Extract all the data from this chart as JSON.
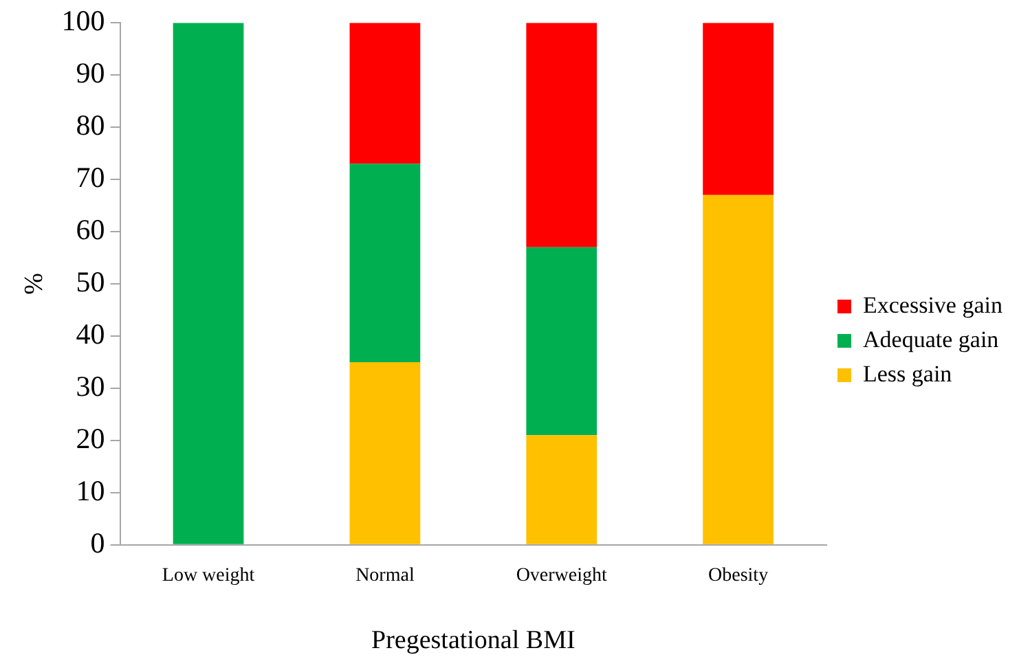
{
  "chart_data": {
    "type": "bar",
    "stacked": true,
    "xlabel": "Pregestational BMI",
    "ylabel": "%",
    "categories": [
      "Low weight",
      "Normal",
      "Overweight",
      "Obesity"
    ],
    "series": [
      {
        "name": "Less gain",
        "color": "#ffc000",
        "values": [
          0,
          35,
          21,
          67
        ]
      },
      {
        "name": "Adequate gain",
        "color": "#00b050",
        "values": [
          100,
          38,
          36,
          0
        ]
      },
      {
        "name": "Excessive gain",
        "color": "#ff0000",
        "values": [
          0,
          27,
          43,
          33
        ]
      }
    ],
    "ylim": [
      0,
      100
    ],
    "yticks": [
      0,
      10,
      20,
      30,
      40,
      50,
      60,
      70,
      80,
      90,
      100
    ],
    "grid": false,
    "legend": "right"
  }
}
